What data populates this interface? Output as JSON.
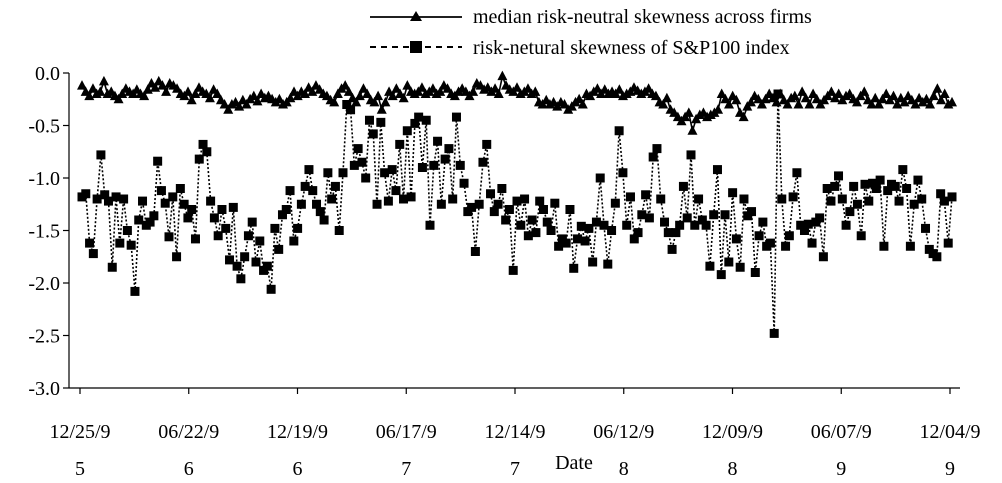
{
  "chart_data": {
    "type": "line",
    "xlabel": "Date",
    "ylabel": "",
    "ylim": [
      -3.0,
      0.0
    ],
    "y_ticks": [
      "0.0",
      "-0.5",
      "-1.0",
      "-1.5",
      "-2.0",
      "-2.5",
      "-3.0"
    ],
    "x_ticks": [
      {
        "top": "12/25/9",
        "bottom": "5"
      },
      {
        "top": "06/22/9",
        "bottom": "6"
      },
      {
        "top": "12/19/9",
        "bottom": "6"
      },
      {
        "top": "06/17/9",
        "bottom": "7"
      },
      {
        "top": "12/14/9",
        "bottom": "7"
      },
      {
        "top": "06/12/9",
        "bottom": "8"
      },
      {
        "top": "12/09/9",
        "bottom": "8"
      },
      {
        "top": "06/07/9",
        "bottom": "9"
      },
      {
        "top": "12/04/9",
        "bottom": "9"
      }
    ],
    "legend_position": "top-right",
    "grid": false,
    "series": [
      {
        "name": "median risk-neutral skewness across firms",
        "style": "solid",
        "marker": "triangle",
        "values": [
          -0.12,
          -0.18,
          -0.22,
          -0.15,
          -0.2,
          -0.18,
          -0.08,
          -0.2,
          -0.18,
          -0.22,
          -0.25,
          -0.2,
          -0.15,
          -0.18,
          -0.2,
          -0.16,
          -0.2,
          -0.22,
          -0.16,
          -0.1,
          -0.14,
          -0.08,
          -0.12,
          -0.18,
          -0.1,
          -0.12,
          -0.15,
          -0.2,
          -0.22,
          -0.18,
          -0.26,
          -0.2,
          -0.14,
          -0.18,
          -0.2,
          -0.24,
          -0.16,
          -0.2,
          -0.26,
          -0.3,
          -0.35,
          -0.3,
          -0.28,
          -0.32,
          -0.26,
          -0.3,
          -0.25,
          -0.22,
          -0.27,
          -0.2,
          -0.24,
          -0.22,
          -0.25,
          -0.28,
          -0.25,
          -0.3,
          -0.28,
          -0.24,
          -0.18,
          -0.22,
          -0.18,
          -0.2,
          -0.14,
          -0.18,
          -0.12,
          -0.16,
          -0.2,
          -0.22,
          -0.26,
          -0.28,
          -0.2,
          -0.15,
          -0.12,
          -0.18,
          -0.24,
          -0.28,
          -0.22,
          -0.15,
          -0.2,
          -0.26,
          -0.28,
          -0.22,
          -0.35,
          -0.28,
          -0.18,
          -0.22,
          -0.15,
          -0.2,
          -0.24,
          -0.12,
          -0.18,
          -0.2,
          -0.18,
          -0.14,
          -0.2,
          -0.18,
          -0.15,
          -0.2,
          -0.18,
          -0.12,
          -0.15,
          -0.2,
          -0.22,
          -0.18,
          -0.15,
          -0.18,
          -0.22,
          -0.18,
          -0.1,
          -0.12,
          -0.16,
          -0.14,
          -0.18,
          -0.15,
          -0.2,
          -0.03,
          -0.12,
          -0.16,
          -0.18,
          -0.14,
          -0.2,
          -0.18,
          -0.15,
          -0.2,
          -0.18,
          -0.28,
          -0.3,
          -0.26,
          -0.3,
          -0.28,
          -0.32,
          -0.28,
          -0.3,
          -0.35,
          -0.32,
          -0.28,
          -0.25,
          -0.3,
          -0.2,
          -0.22,
          -0.18,
          -0.15,
          -0.2,
          -0.16,
          -0.2,
          -0.18,
          -0.2,
          -0.16,
          -0.22,
          -0.2,
          -0.18,
          -0.14,
          -0.17,
          -0.2,
          -0.18,
          -0.15,
          -0.2,
          -0.22,
          -0.28,
          -0.3,
          -0.24,
          -0.35,
          -0.38,
          -0.42,
          -0.46,
          -0.42,
          -0.38,
          -0.55,
          -0.44,
          -0.4,
          -0.38,
          -0.42,
          -0.4,
          -0.38,
          -0.35,
          -0.2,
          -0.25,
          -0.3,
          -0.22,
          -0.26,
          -0.38,
          -0.42,
          -0.32,
          -0.28,
          -0.22,
          -0.25,
          -0.3,
          -0.25,
          -0.2,
          -0.24,
          -0.28,
          -0.2,
          -0.26,
          -0.3,
          -0.24,
          -0.22,
          -0.3,
          -0.18,
          -0.24,
          -0.3,
          -0.2,
          -0.25,
          -0.3,
          -0.26,
          -0.22,
          -0.18,
          -0.24,
          -0.2,
          -0.26,
          -0.22,
          -0.2,
          -0.25,
          -0.28,
          -0.22,
          -0.18,
          -0.26,
          -0.3,
          -0.24,
          -0.3,
          -0.25,
          -0.2,
          -0.26,
          -0.22,
          -0.3,
          -0.24,
          -0.28,
          -0.22,
          -0.26,
          -0.3,
          -0.24,
          -0.28,
          -0.25,
          -0.3,
          -0.22,
          -0.15,
          -0.26,
          -0.2,
          -0.3,
          -0.28
        ]
      },
      {
        "name": "risk-netural skewness of S&P100 index",
        "style": "dotted",
        "marker": "square",
        "values": [
          -1.18,
          -1.15,
          -1.62,
          -1.72,
          -1.2,
          -0.78,
          -1.16,
          -1.22,
          -1.85,
          -1.18,
          -1.62,
          -1.2,
          -1.5,
          -1.64,
          -2.08,
          -1.4,
          -1.22,
          -1.45,
          -1.42,
          -1.36,
          -0.84,
          -1.12,
          -1.24,
          -1.56,
          -1.18,
          -1.75,
          -1.1,
          -1.25,
          -1.38,
          -1.3,
          -1.58,
          -0.82,
          -0.68,
          -0.75,
          -1.22,
          -1.38,
          -1.55,
          -1.3,
          -1.48,
          -1.78,
          -1.28,
          -1.84,
          -1.96,
          -1.75,
          -1.55,
          -1.42,
          -1.8,
          -1.6,
          -1.88,
          -1.84,
          -2.06,
          -1.48,
          -1.68,
          -1.35,
          -1.3,
          -1.12,
          -1.6,
          -1.48,
          -1.25,
          -1.08,
          -0.92,
          -1.12,
          -1.25,
          -1.32,
          -1.4,
          -0.95,
          -1.2,
          -1.08,
          -1.5,
          -0.95,
          -0.3,
          -0.35,
          -0.88,
          -0.72,
          -0.85,
          -1.0,
          -0.45,
          -0.58,
          -1.25,
          -0.47,
          -0.95,
          -1.22,
          -0.92,
          -1.12,
          -0.68,
          -1.2,
          -0.55,
          -1.18,
          -0.48,
          -0.42,
          -0.9,
          -0.45,
          -1.45,
          -0.88,
          -0.65,
          -1.25,
          -0.82,
          -0.72,
          -1.2,
          -0.42,
          -0.88,
          -1.05,
          -1.32,
          -1.28,
          -1.7,
          -1.25,
          -0.85,
          -0.68,
          -1.15,
          -1.32,
          -1.25,
          -1.1,
          -1.4,
          -1.3,
          -1.88,
          -1.22,
          -1.45,
          -1.2,
          -1.55,
          -1.4,
          -1.52,
          -1.22,
          -1.3,
          -1.42,
          -1.5,
          -1.24,
          -1.65,
          -1.58,
          -1.62,
          -1.3,
          -1.86,
          -1.58,
          -1.46,
          -1.6,
          -1.48,
          -1.8,
          -1.42,
          -1.0,
          -1.45,
          -1.82,
          -1.5,
          -1.24,
          -0.55,
          -0.95,
          -1.45,
          -1.18,
          -1.58,
          -1.52,
          -1.35,
          -1.16,
          -1.38,
          -0.8,
          -0.72,
          -1.2,
          -1.42,
          -1.52,
          -1.68,
          -1.52,
          -1.45,
          -1.08,
          -1.38,
          -0.78,
          -1.45,
          -1.2,
          -1.4,
          -1.45,
          -1.84,
          -1.35,
          -0.92,
          -1.92,
          -1.35,
          -1.8,
          -1.14,
          -1.58,
          -1.85,
          -1.2,
          -1.36,
          -1.32,
          -1.9,
          -1.55,
          -1.42,
          -1.65,
          -1.62,
          -2.48,
          -0.2,
          -1.2,
          -1.65,
          -1.55,
          -1.18,
          -0.95,
          -1.45,
          -1.5,
          -1.44,
          -1.62,
          -1.42,
          -1.38,
          -1.75,
          -1.1,
          -1.22,
          -1.08,
          -0.98,
          -1.2,
          -1.45,
          -1.32,
          -1.08,
          -1.25,
          -1.55,
          -1.06,
          -1.22,
          -1.05,
          -1.1,
          -1.02,
          -1.65,
          -1.12,
          -1.06,
          -1.08,
          -1.22,
          -0.92,
          -1.1,
          -1.65,
          -1.25,
          -1.02,
          -1.2,
          -1.48,
          -1.68,
          -1.72,
          -1.75,
          -1.15,
          -1.22,
          -1.62,
          -1.18
        ]
      }
    ]
  }
}
